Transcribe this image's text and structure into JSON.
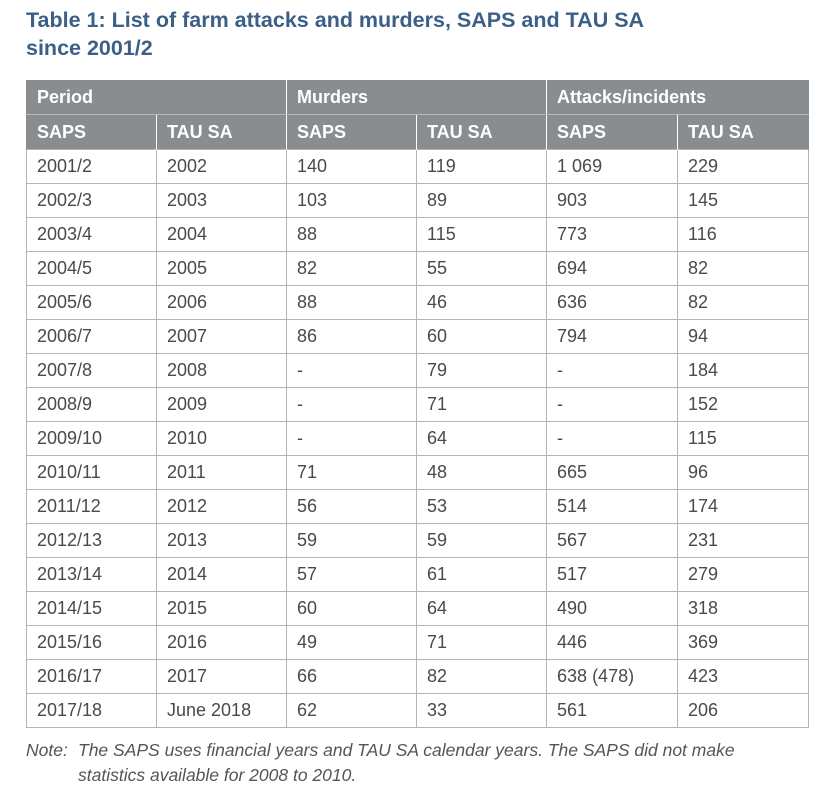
{
  "title_line1": "Table 1: List of farm attacks and murders, SAPS and TAU SA",
  "title_line2": "since 2001/2",
  "table": {
    "group_headers": [
      "Period",
      "Murders",
      "Attacks/incidents"
    ],
    "sub_headers": [
      "SAPS",
      "TAU SA",
      "SAPS",
      "TAU SA",
      "SAPS",
      "TAU SA"
    ],
    "rows": [
      [
        "2001/2",
        "2002",
        "140",
        "119",
        "1 069",
        "229"
      ],
      [
        "2002/3",
        "2003",
        "103",
        "89",
        "903",
        "145"
      ],
      [
        "2003/4",
        "2004",
        "88",
        "115",
        "773",
        "116"
      ],
      [
        "2004/5",
        "2005",
        "82",
        "55",
        "694",
        "82"
      ],
      [
        "2005/6",
        "2006",
        "88",
        "46",
        "636",
        "82"
      ],
      [
        "2006/7",
        "2007",
        "86",
        "60",
        "794",
        "94"
      ],
      [
        "2007/8",
        "2008",
        "-",
        "79",
        "-",
        "184"
      ],
      [
        "2008/9",
        "2009",
        "-",
        "71",
        "-",
        "152"
      ],
      [
        "2009/10",
        "2010",
        "-",
        "64",
        "-",
        "115"
      ],
      [
        "2010/11",
        "2011",
        "71",
        "48",
        "665",
        "96"
      ],
      [
        "2011/12",
        "2012",
        "56",
        "53",
        "514",
        "174"
      ],
      [
        "2012/13",
        "2013",
        "59",
        "59",
        "567",
        "231"
      ],
      [
        "2013/14",
        "2014",
        "57",
        "61",
        "517",
        "279"
      ],
      [
        "2014/15",
        "2015",
        "60",
        "64",
        "490",
        "318"
      ],
      [
        "2015/16",
        "2016",
        "49",
        "71",
        "446",
        "369"
      ],
      [
        "2016/17",
        "2017",
        "66",
        "82",
        "638 (478)",
        "423"
      ],
      [
        "2017/18",
        "June 2018",
        "62",
        "33",
        "561",
        "206"
      ]
    ]
  },
  "note": {
    "label": "Note:",
    "line1": "The SAPS uses financial years and TAU SA calendar years. The SAPS did not make",
    "line2": "statistics available for 2008 to 2010."
  },
  "colors": {
    "title": "#3b5f87",
    "header_bg": "#8a8d90",
    "grid": "#b5b5b5"
  }
}
